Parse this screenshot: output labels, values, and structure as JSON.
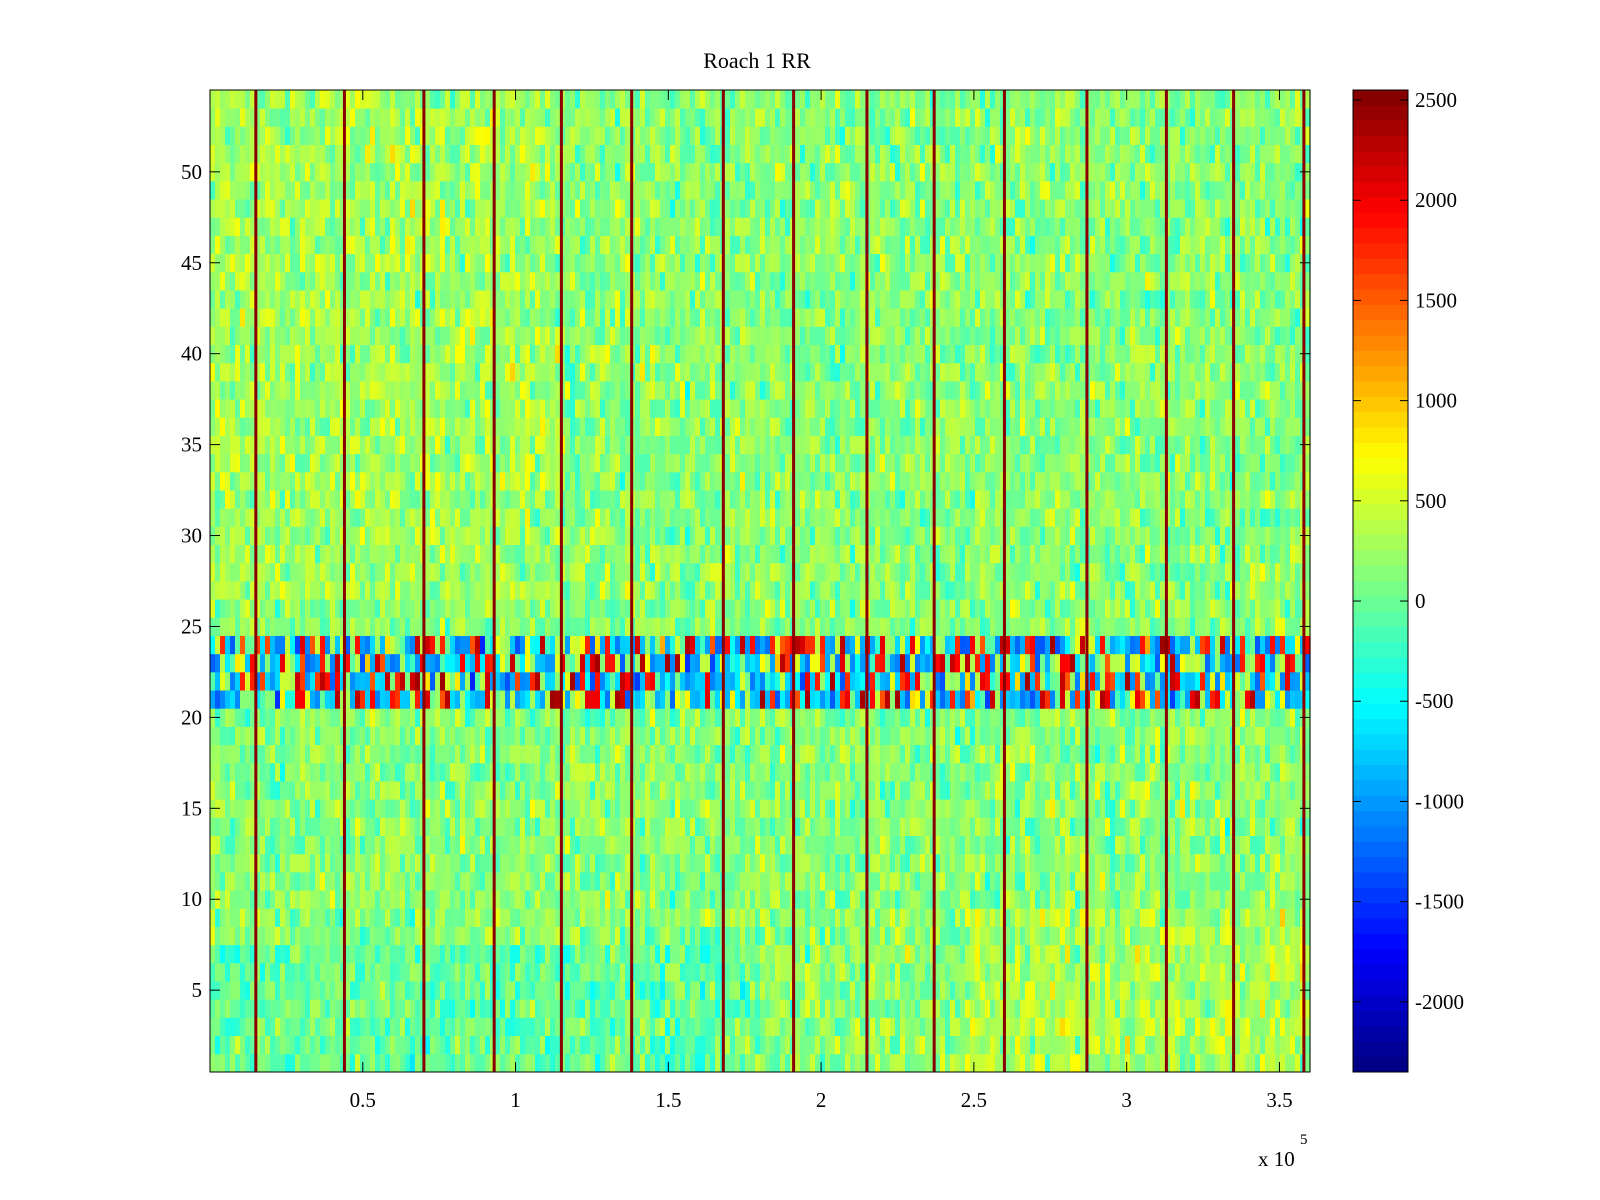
{
  "chart_data": {
    "type": "heatmap",
    "title": "Roach 1 RR",
    "xlabel": "",
    "ylabel": "",
    "x_multiplier_label": "x 10",
    "x_multiplier_exponent": "5",
    "xlim": [
      0,
      3.6
    ],
    "ylim": [
      0.5,
      54.5
    ],
    "xticks": [
      0.5,
      1,
      1.5,
      2,
      2.5,
      3,
      3.5
    ],
    "xtick_labels": [
      "0.5",
      "1",
      "1.5",
      "2",
      "2.5",
      "3",
      "3.5"
    ],
    "yticks": [
      5,
      10,
      15,
      20,
      25,
      30,
      35,
      40,
      45,
      50
    ],
    "ytick_labels": [
      "5",
      "10",
      "15",
      "20",
      "25",
      "30",
      "35",
      "40",
      "45",
      "50"
    ],
    "rows": 54,
    "colormap": "jet",
    "clim": [
      -2350,
      2550
    ],
    "colorbar_ticks": [
      2500,
      2000,
      1500,
      1000,
      500,
      0,
      -500,
      -1000,
      -1500,
      -2000
    ],
    "colorbar_labels": [
      "2500",
      "2000",
      "1500",
      "1000",
      "500",
      "0",
      "-500",
      "-1000",
      "-1500",
      "-2000"
    ],
    "baseline_value": 150,
    "anomalous_rows": [
      {
        "row": 21,
        "pattern": "mixed",
        "range": [
          -1200,
          2300
        ]
      },
      {
        "row": 22,
        "pattern": "mixed",
        "range": [
          -1200,
          2300
        ]
      },
      {
        "row": 23,
        "pattern": "mixed",
        "range": [
          -1200,
          2300
        ]
      },
      {
        "row": 24,
        "pattern": "mixed",
        "range": [
          -1200,
          2300
        ]
      }
    ],
    "vertical_spike_columns_x1e5": [
      0.15,
      0.44,
      0.7,
      0.93,
      1.15,
      1.38,
      1.68,
      1.91,
      2.15,
      2.37,
      2.6,
      2.87,
      3.13,
      3.35,
      3.58
    ],
    "spike_value": 2500
  }
}
